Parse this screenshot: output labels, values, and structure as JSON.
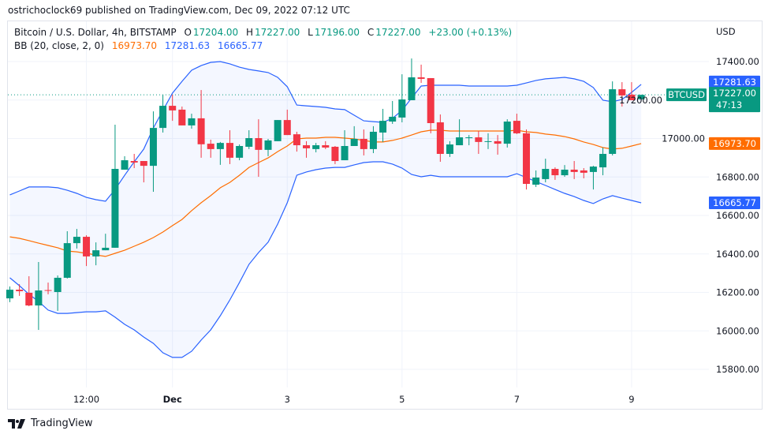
{
  "published": "ostrichoclock69 published on TradingView.com, Dec 09, 2022 07:12 UTC",
  "legend": {
    "symbol": "Bitcoin / U.S. Dollar, 4h, BITSTAMP",
    "o_label": "O",
    "o": "17204.00",
    "h_label": "H",
    "h": "17227.00",
    "l_label": "L",
    "l": "17196.00",
    "c_label": "C",
    "c": "17227.00",
    "change": "+23.00 (+0.13%)",
    "bb_label": "BB (20, close, 2, 0)",
    "bb_basis": "16973.70",
    "bb_upper": "17281.63",
    "bb_lower": "16665.77"
  },
  "price_axis": {
    "currency": "USD",
    "ticks": [
      "17400.00",
      "17200.00",
      "17000.00",
      "16800.00",
      "16600.00",
      "16400.00",
      "16200.00",
      "16000.00",
      "15800.00"
    ],
    "labels": {
      "upper": "17281.63",
      "last": "17227.00",
      "countdown": "47:13",
      "basis": "16973.70",
      "lower": "16665.77"
    },
    "symbol_tag": "BTCUSD"
  },
  "time_axis": {
    "ticks": [
      "12:00",
      "Dec",
      "3",
      "5",
      "7",
      "9"
    ]
  },
  "logo": {
    "text": "TradingView"
  },
  "colors": {
    "up": "#089981",
    "down": "#f23645",
    "basis": "#ff6d00",
    "bands": "#2962ff"
  },
  "chart_data": {
    "type": "candlestick",
    "title": "Bitcoin / U.S. Dollar, 4h, BITSTAMP",
    "ylabel": "USD",
    "ylim": [
      15740,
      17600
    ],
    "grid": true,
    "ohlc_order": [
      "open",
      "high",
      "low",
      "close"
    ],
    "candles": [
      [
        16169,
        16231,
        16149,
        16214
      ],
      [
        16214,
        16243,
        16182,
        16206
      ],
      [
        16198,
        16284,
        16128,
        16132
      ],
      [
        16132,
        16358,
        16005,
        16210
      ],
      [
        16212,
        16251,
        16190,
        16208
      ],
      [
        16202,
        16288,
        16104,
        16276
      ],
      [
        16276,
        16518,
        16272,
        16456
      ],
      [
        16456,
        16530,
        16428,
        16489
      ],
      [
        16489,
        16497,
        16337,
        16387
      ],
      [
        16387,
        16460,
        16341,
        16419
      ],
      [
        16419,
        16505,
        16419,
        16432
      ],
      [
        16432,
        17072,
        16432,
        16842
      ],
      [
        16838,
        16908,
        16838,
        16887
      ],
      [
        16883,
        16920,
        16846,
        16875
      ],
      [
        16883,
        16883,
        16772,
        16858
      ],
      [
        16858,
        17141,
        16723,
        17055
      ],
      [
        17055,
        17228,
        17031,
        17170
      ],
      [
        17170,
        17228,
        17092,
        17146
      ],
      [
        17150,
        17166,
        17068,
        17068
      ],
      [
        17068,
        17129,
        17051,
        17105
      ],
      [
        17105,
        17252,
        16900,
        16970
      ],
      [
        16973,
        16994,
        16900,
        16945
      ],
      [
        16945,
        16982,
        16863,
        16977
      ],
      [
        16977,
        17043,
        16867,
        16900
      ],
      [
        16900,
        16969,
        16887,
        16961
      ],
      [
        16957,
        17043,
        16945,
        17002
      ],
      [
        17002,
        17100,
        16801,
        16941
      ],
      [
        16941,
        16998,
        16908,
        16990
      ],
      [
        16986,
        17096,
        16986,
        17096
      ],
      [
        17096,
        17150,
        17018,
        17018
      ],
      [
        17022,
        17035,
        16932,
        16965
      ],
      [
        16965,
        16986,
        16900,
        16949
      ],
      [
        16945,
        16977,
        16928,
        16965
      ],
      [
        16965,
        16986,
        16945,
        16953
      ],
      [
        16957,
        16961,
        16867,
        16883
      ],
      [
        16887,
        17043,
        16887,
        16961
      ],
      [
        16961,
        17064,
        16961,
        16998
      ],
      [
        16998,
        17047,
        16912,
        16945
      ],
      [
        16945,
        17064,
        16924,
        17035
      ],
      [
        17031,
        17154,
        16982,
        17092
      ],
      [
        17088,
        17195,
        17076,
        17113
      ],
      [
        17109,
        17334,
        17084,
        17203
      ],
      [
        17199,
        17416,
        17199,
        17318
      ],
      [
        17318,
        17384,
        17289,
        17310
      ],
      [
        17314,
        17314,
        17027,
        17080
      ],
      [
        17084,
        17125,
        16879,
        16920
      ],
      [
        16920,
        16986,
        16904,
        16969
      ],
      [
        16965,
        17100,
        16965,
        17006
      ],
      [
        17002,
        17018,
        16965,
        17006
      ],
      [
        17006,
        17039,
        16920,
        16982
      ],
      [
        16982,
        17027,
        16945,
        16986
      ],
      [
        16986,
        17018,
        16916,
        16973
      ],
      [
        16973,
        17100,
        16953,
        17088
      ],
      [
        17092,
        17129,
        17023,
        17027
      ],
      [
        17027,
        17047,
        16735,
        16764
      ],
      [
        16760,
        16834,
        16748,
        16797
      ],
      [
        16789,
        16895,
        16772,
        16842
      ],
      [
        16842,
        16850,
        16785,
        16809
      ],
      [
        16809,
        16862,
        16801,
        16838
      ],
      [
        16838,
        16883,
        16789,
        16826
      ],
      [
        16834,
        16846,
        16793,
        16822
      ],
      [
        16826,
        16858,
        16735,
        16854
      ],
      [
        16850,
        16953,
        16809,
        16920
      ],
      [
        16920,
        17297,
        16912,
        17256
      ],
      [
        17256,
        17293,
        17166,
        17224
      ],
      [
        17228,
        17293,
        17199,
        17199
      ],
      [
        17204,
        17227,
        17196,
        17227
      ]
    ],
    "bb_upper": [
      16707,
      16727,
      16748,
      16748,
      16748,
      16744,
      16731,
      16715,
      16694,
      16682,
      16674,
      16735,
      16809,
      16879,
      16945,
      17055,
      17146,
      17236,
      17297,
      17355,
      17379,
      17396,
      17400,
      17388,
      17371,
      17359,
      17351,
      17343,
      17318,
      17269,
      17174,
      17170,
      17166,
      17162,
      17154,
      17150,
      17121,
      17092,
      17088,
      17084,
      17105,
      17146,
      17211,
      17273,
      17277,
      17277,
      17277,
      17277,
      17273,
      17273,
      17273,
      17273,
      17273,
      17277,
      17289,
      17302,
      17310,
      17314,
      17318,
      17310,
      17297,
      17265,
      17199,
      17191,
      17203,
      17240,
      17281.63
    ],
    "bb_basis": [
      16489,
      16481,
      16469,
      16456,
      16444,
      16432,
      16415,
      16411,
      16403,
      16395,
      16387,
      16403,
      16419,
      16440,
      16461,
      16485,
      16514,
      16547,
      16579,
      16625,
      16666,
      16703,
      16744,
      16772,
      16809,
      16850,
      16875,
      16899,
      16932,
      16961,
      16998,
      17002,
      17002,
      17006,
      17006,
      17002,
      16998,
      16990,
      16982,
      16982,
      16990,
      17002,
      17018,
      17035,
      17043,
      17043,
      17039,
      17039,
      17039,
      17039,
      17039,
      17039,
      17039,
      17043,
      17035,
      17031,
      17023,
      17018,
      17010,
      16998,
      16982,
      16969,
      16953,
      16945,
      16949,
      16961,
      16973.7
    ],
    "bb_lower": [
      16276,
      16235,
      16190,
      16153,
      16108,
      16091,
      16091,
      16095,
      16099,
      16099,
      16104,
      16071,
      16034,
      16005,
      15968,
      15935,
      15886,
      15862,
      15862,
      15894,
      15952,
      16005,
      16079,
      16161,
      16251,
      16346,
      16407,
      16461,
      16555,
      16666,
      16809,
      16826,
      16838,
      16846,
      16850,
      16850,
      16863,
      16875,
      16879,
      16879,
      16867,
      16846,
      16813,
      16801,
      16809,
      16801,
      16801,
      16801,
      16801,
      16801,
      16801,
      16801,
      16801,
      16817,
      16797,
      16776,
      16756,
      16735,
      16715,
      16698,
      16678,
      16662,
      16686,
      16703,
      16690,
      16678,
      16665.77
    ],
    "last_price": 17227
  }
}
